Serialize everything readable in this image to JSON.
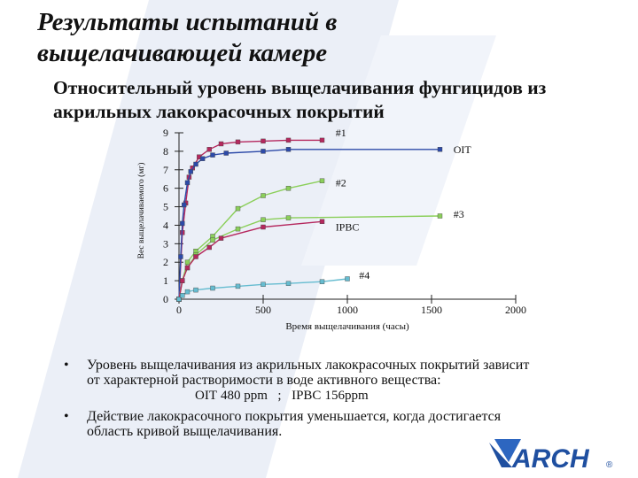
{
  "title_lines": [
    "Результаты испытаний в",
    "выщелачивающей камере"
  ],
  "subtitle_lines": [
    "Относительный уровень выщелачивания фунгицидов из",
    "акрильных лакокрасочных покрытий"
  ],
  "bullets": [
    {
      "lines": [
        "Уровень выщелачивания из акрильных лакокрасочных покрытий зависит",
        "от характерной растворимости в воде активного вещества:"
      ]
    },
    {
      "lines": [
        "Действие лакокрасочного покрытия уменьшается, когда достигается",
        "область кривой выщелачивания."
      ]
    }
  ],
  "bullet_sub": {
    "oit": "OIT",
    "oit_val": "480 ppm",
    "sep": "  ;  ",
    "ipbc": "IPBC",
    "ipbc_val": "156ppm"
  },
  "bullet_glyph": "•",
  "logo_text": "ARCH",
  "logo_mark": "®",
  "colors": {
    "line1": "#b5285e",
    "line2": "#2d4aa8",
    "line3": "#8bcf5a",
    "line4": "#66bcd0",
    "bg_stripe": "#ebeff7"
  },
  "chart_data": {
    "type": "line",
    "ylabel": "Вес выщелачиваемого (мг)",
    "xlabel": "Время выщелачивания (часы)",
    "xlim": [
      0,
      2000
    ],
    "ylim": [
      0,
      9
    ],
    "xticks": [
      "0",
      "500",
      "1000",
      "1500",
      "2000"
    ],
    "xtick_values": [
      0,
      500,
      1000,
      1500,
      2000
    ],
    "yticks": [
      "0",
      "1",
      "2",
      "3",
      "4",
      "5",
      "6",
      "7",
      "8",
      "9"
    ],
    "yticks_values": [
      0,
      1,
      2,
      3,
      4,
      5,
      6,
      7,
      8,
      9
    ],
    "series": [
      {
        "label": "#1",
        "color": "#b5285e",
        "x": [
          0,
          20,
          40,
          60,
          80,
          120,
          180,
          250,
          350,
          500,
          650,
          850
        ],
        "y": [
          0,
          3.6,
          5.2,
          6.6,
          7.1,
          7.7,
          8.1,
          8.4,
          8.5,
          8.55,
          8.6,
          8.6
        ]
      },
      {
        "label": "OIT",
        "color": "#2d4aa8",
        "x": [
          0,
          10,
          20,
          30,
          50,
          70,
          100,
          140,
          200,
          280,
          500,
          650,
          1550
        ],
        "y": [
          0,
          2.3,
          4.1,
          5.1,
          6.3,
          6.9,
          7.3,
          7.6,
          7.8,
          7.9,
          8.0,
          8.1,
          8.1
        ]
      },
      {
        "label": "#2",
        "color": "#8bcf5a",
        "x": [
          0,
          20,
          50,
          100,
          200,
          350,
          500,
          650,
          850
        ],
        "y": [
          0,
          1.0,
          2.0,
          2.6,
          3.4,
          4.9,
          5.6,
          6.0,
          6.4
        ]
      },
      {
        "label": "#3",
        "color": "#8bcf5a",
        "x": [
          0,
          20,
          50,
          100,
          200,
          350,
          500,
          650,
          1550
        ],
        "y": [
          0,
          1.0,
          1.7,
          2.4,
          3.2,
          3.8,
          4.3,
          4.4,
          4.5
        ]
      },
      {
        "label": "IPBC",
        "color": "#b5285e",
        "x": [
          0,
          20,
          50,
          100,
          180,
          250,
          500,
          850
        ],
        "y": [
          0,
          1.0,
          1.7,
          2.3,
          2.8,
          3.3,
          3.9,
          4.2
        ]
      },
      {
        "label": "#4",
        "color": "#66bcd0",
        "x": [
          0,
          20,
          50,
          100,
          200,
          350,
          500,
          650,
          850,
          1000
        ],
        "y": [
          0,
          0.2,
          0.4,
          0.5,
          0.6,
          0.7,
          0.8,
          0.85,
          0.95,
          1.1
        ]
      }
    ],
    "annotations": [
      {
        "text": "#1",
        "x": 930,
        "y": 9.0
      },
      {
        "text": "OIT",
        "x": 1630,
        "y": 8.1
      },
      {
        "text": "#2",
        "x": 930,
        "y": 6.3
      },
      {
        "text": "#3",
        "x": 1630,
        "y": 4.6
      },
      {
        "text": "IPBC",
        "x": 930,
        "y": 3.9
      },
      {
        "text": "#4",
        "x": 1070,
        "y": 1.3
      }
    ]
  }
}
